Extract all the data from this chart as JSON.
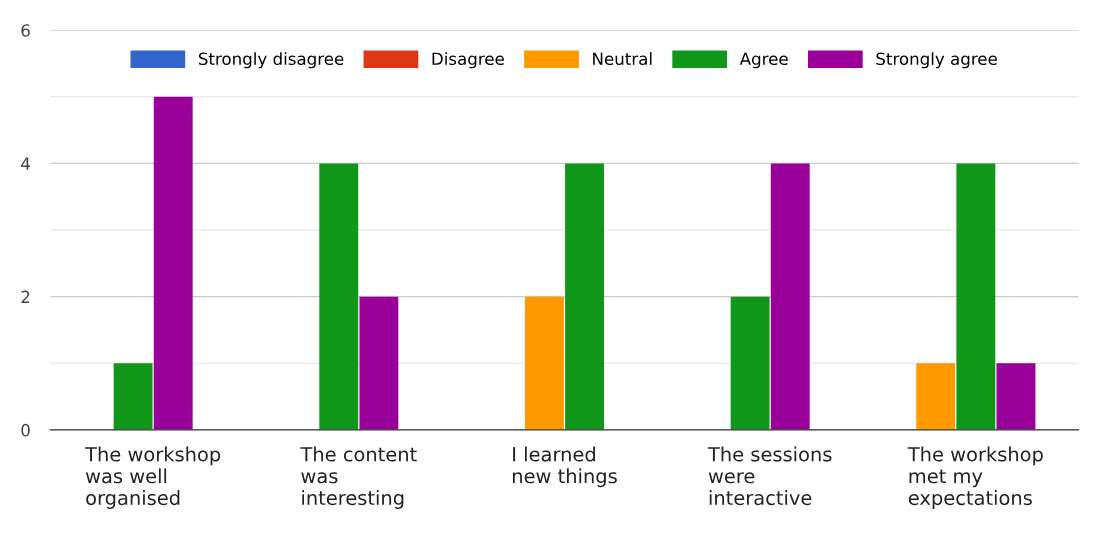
{
  "chart_data": {
    "type": "bar",
    "categories": [
      "The workshop was well organised",
      "The content was interesting",
      "I learned new things",
      "The sessions were interactive",
      "The workshop met my expectations"
    ],
    "series": [
      {
        "name": "Strongly disagree",
        "color": "#3366cc",
        "values": [
          0,
          0,
          0,
          0,
          0
        ]
      },
      {
        "name": "Disagree",
        "color": "#dc3912",
        "values": [
          0,
          0,
          0,
          0,
          0
        ]
      },
      {
        "name": "Neutral",
        "color": "#ff9900",
        "values": [
          0,
          0,
          2,
          0,
          1
        ]
      },
      {
        "name": "Agree",
        "color": "#109618",
        "values": [
          1,
          4,
          4,
          2,
          4
        ]
      },
      {
        "name": "Strongly agree",
        "color": "#990099",
        "values": [
          5,
          2,
          0,
          4,
          1
        ]
      }
    ],
    "ylim": [
      0,
      6
    ],
    "yticks": [
      0,
      {
        "value": 1,
        "label": null
      },
      2,
      {
        "value": 3,
        "label": null
      },
      4,
      {
        "value": 5,
        "label": null
      },
      6
    ],
    "grid": "y",
    "legend": "top"
  }
}
